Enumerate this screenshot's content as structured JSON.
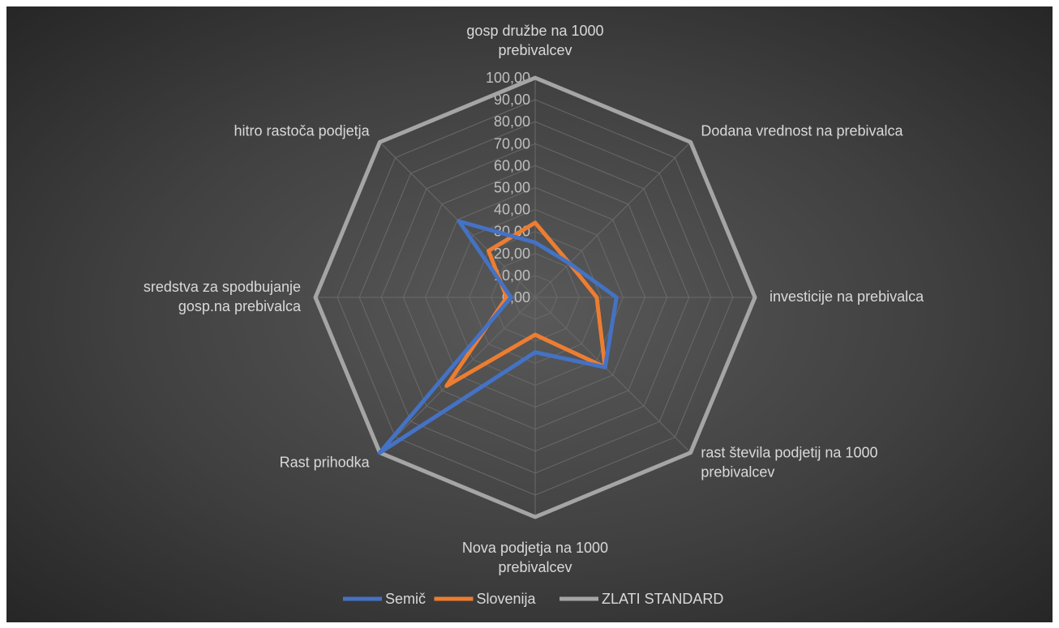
{
  "chart_data": {
    "type": "radar",
    "categories": [
      [
        "gosp družbe na 1000",
        "prebivalcev"
      ],
      [
        "Dodana vrednost na prebivalca"
      ],
      [
        "investicije na prebivalca"
      ],
      [
        "rast števila podjetij na 1000",
        "prebivalcev"
      ],
      [
        "Nova podjetja na 1000",
        "prebivalcev"
      ],
      [
        "Rast prihodka"
      ],
      [
        "sredstva za spodbujanje",
        "gosp.na prebivalca"
      ],
      [
        "hitro rastoča podjetja"
      ]
    ],
    "ticks": [
      "0,00",
      "10,00",
      "20,00",
      "30,00",
      "40,00",
      "50,00",
      "60,00",
      "70,00",
      "80,00",
      "90,00",
      "100,00"
    ],
    "rmax": 100,
    "grid": true,
    "legend_position": "bottom",
    "series": [
      {
        "name": "Semič",
        "color": "#4472C4",
        "values": [
          25,
          22,
          37,
          45,
          25,
          100,
          11,
          49
        ]
      },
      {
        "name": "Slovenija",
        "color": "#ED7D31",
        "values": [
          34,
          22,
          28,
          45,
          17,
          57,
          13,
          30
        ]
      },
      {
        "name": "ZLATI STANDARD",
        "color": "#A5A5A5",
        "values": [
          100,
          100,
          100,
          100,
          100,
          100,
          100,
          100
        ]
      }
    ]
  }
}
